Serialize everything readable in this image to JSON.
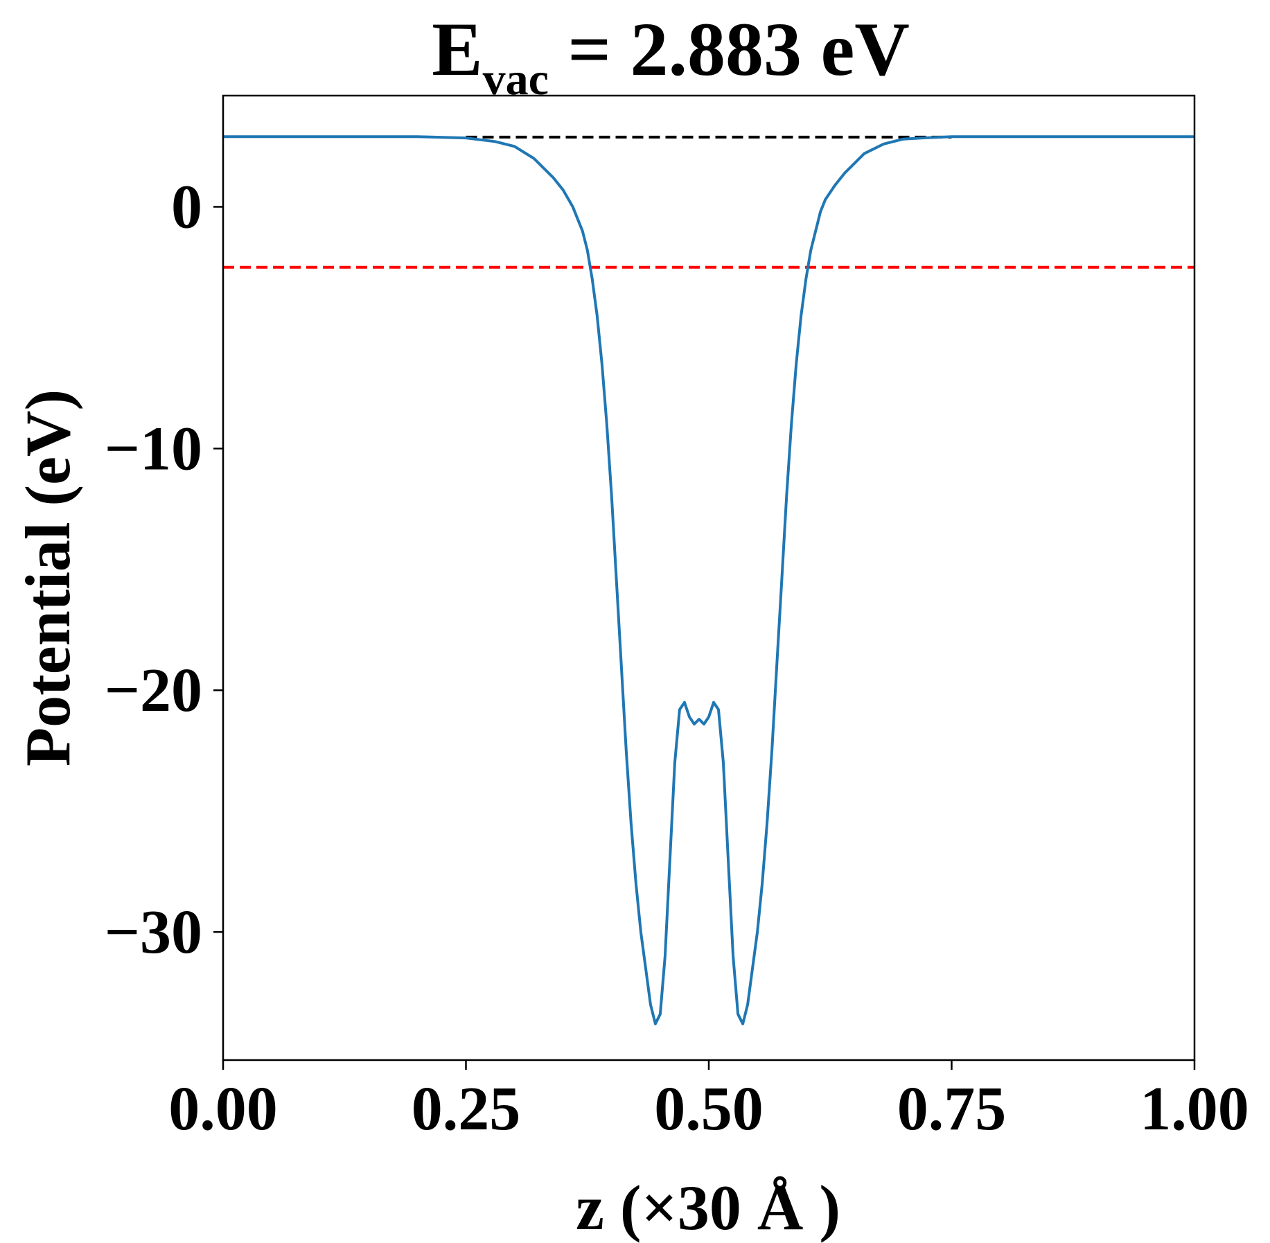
{
  "chart_data": {
    "type": "line",
    "title": {
      "prefix": "E",
      "subscript": "vac",
      "suffix": " = 2.883 eV"
    },
    "xlabel": "z (×30 Å )",
    "ylabel": "Potential (eV)",
    "xlim": [
      0.0,
      1.0
    ],
    "ylim": [
      -35.3,
      4.6
    ],
    "x_ticks": [
      0.0,
      0.25,
      0.5,
      0.75,
      1.0
    ],
    "x_tick_labels": [
      "0.00",
      "0.25",
      "0.50",
      "0.75",
      "1.00"
    ],
    "y_ticks": [
      0,
      -10,
      -20,
      -30
    ],
    "y_tick_labels": [
      "0",
      "−10",
      "−20",
      "−30"
    ],
    "grid": false,
    "colors": {
      "series": "#1f77b4",
      "vacuum_line": "#000000",
      "red_line": "#ff0000"
    },
    "series": [
      {
        "x": [
          0.0,
          0.05,
          0.1,
          0.15,
          0.2,
          0.25,
          0.28,
          0.3,
          0.32,
          0.34,
          0.35,
          0.36,
          0.37,
          0.375,
          0.38,
          0.385,
          0.39,
          0.395,
          0.4,
          0.405,
          0.41,
          0.415,
          0.42,
          0.425,
          0.43,
          0.435,
          0.44,
          0.445,
          0.45,
          0.455,
          0.46,
          0.465,
          0.47,
          0.475,
          0.48,
          0.485,
          0.49,
          0.495,
          0.5,
          0.505,
          0.51,
          0.515,
          0.52,
          0.525,
          0.53,
          0.535,
          0.54,
          0.545,
          0.55,
          0.555,
          0.56,
          0.565,
          0.57,
          0.575,
          0.58,
          0.585,
          0.59,
          0.595,
          0.6,
          0.605,
          0.61,
          0.615,
          0.62,
          0.625,
          0.63,
          0.64,
          0.65,
          0.66,
          0.68,
          0.7,
          0.72,
          0.75,
          0.8,
          0.85,
          0.9,
          0.95,
          1.0
        ],
        "y": [
          2.9,
          2.9,
          2.9,
          2.9,
          2.9,
          2.85,
          2.7,
          2.5,
          2.0,
          1.2,
          0.7,
          0.0,
          -1.0,
          -1.8,
          -3.0,
          -4.5,
          -6.5,
          -9.0,
          -12.0,
          -15.5,
          -19.0,
          -22.5,
          -25.5,
          -28.0,
          -30.0,
          -31.5,
          -33.0,
          -33.8,
          -33.4,
          -31.0,
          -27.0,
          -23.0,
          -20.8,
          -20.5,
          -21.1,
          -21.4,
          -21.2,
          -21.4,
          -21.1,
          -20.5,
          -20.8,
          -23.0,
          -27.0,
          -31.0,
          -33.4,
          -33.8,
          -33.0,
          -31.5,
          -30.0,
          -28.0,
          -25.5,
          -22.5,
          -19.0,
          -15.5,
          -12.0,
          -9.0,
          -6.5,
          -4.5,
          -3.0,
          -1.8,
          -1.0,
          -0.2,
          0.3,
          0.6,
          0.9,
          1.4,
          1.8,
          2.2,
          2.6,
          2.8,
          2.85,
          2.9,
          2.9,
          2.9,
          2.9,
          2.9,
          2.9
        ]
      }
    ],
    "reference_lines": [
      {
        "y": 2.883,
        "x_range": [
          0.25,
          0.75
        ],
        "color": "#000000",
        "style": "dashed"
      },
      {
        "y": -2.5,
        "x_range": [
          0.0,
          1.0
        ],
        "color": "#ff0000",
        "style": "dashed"
      }
    ]
  }
}
